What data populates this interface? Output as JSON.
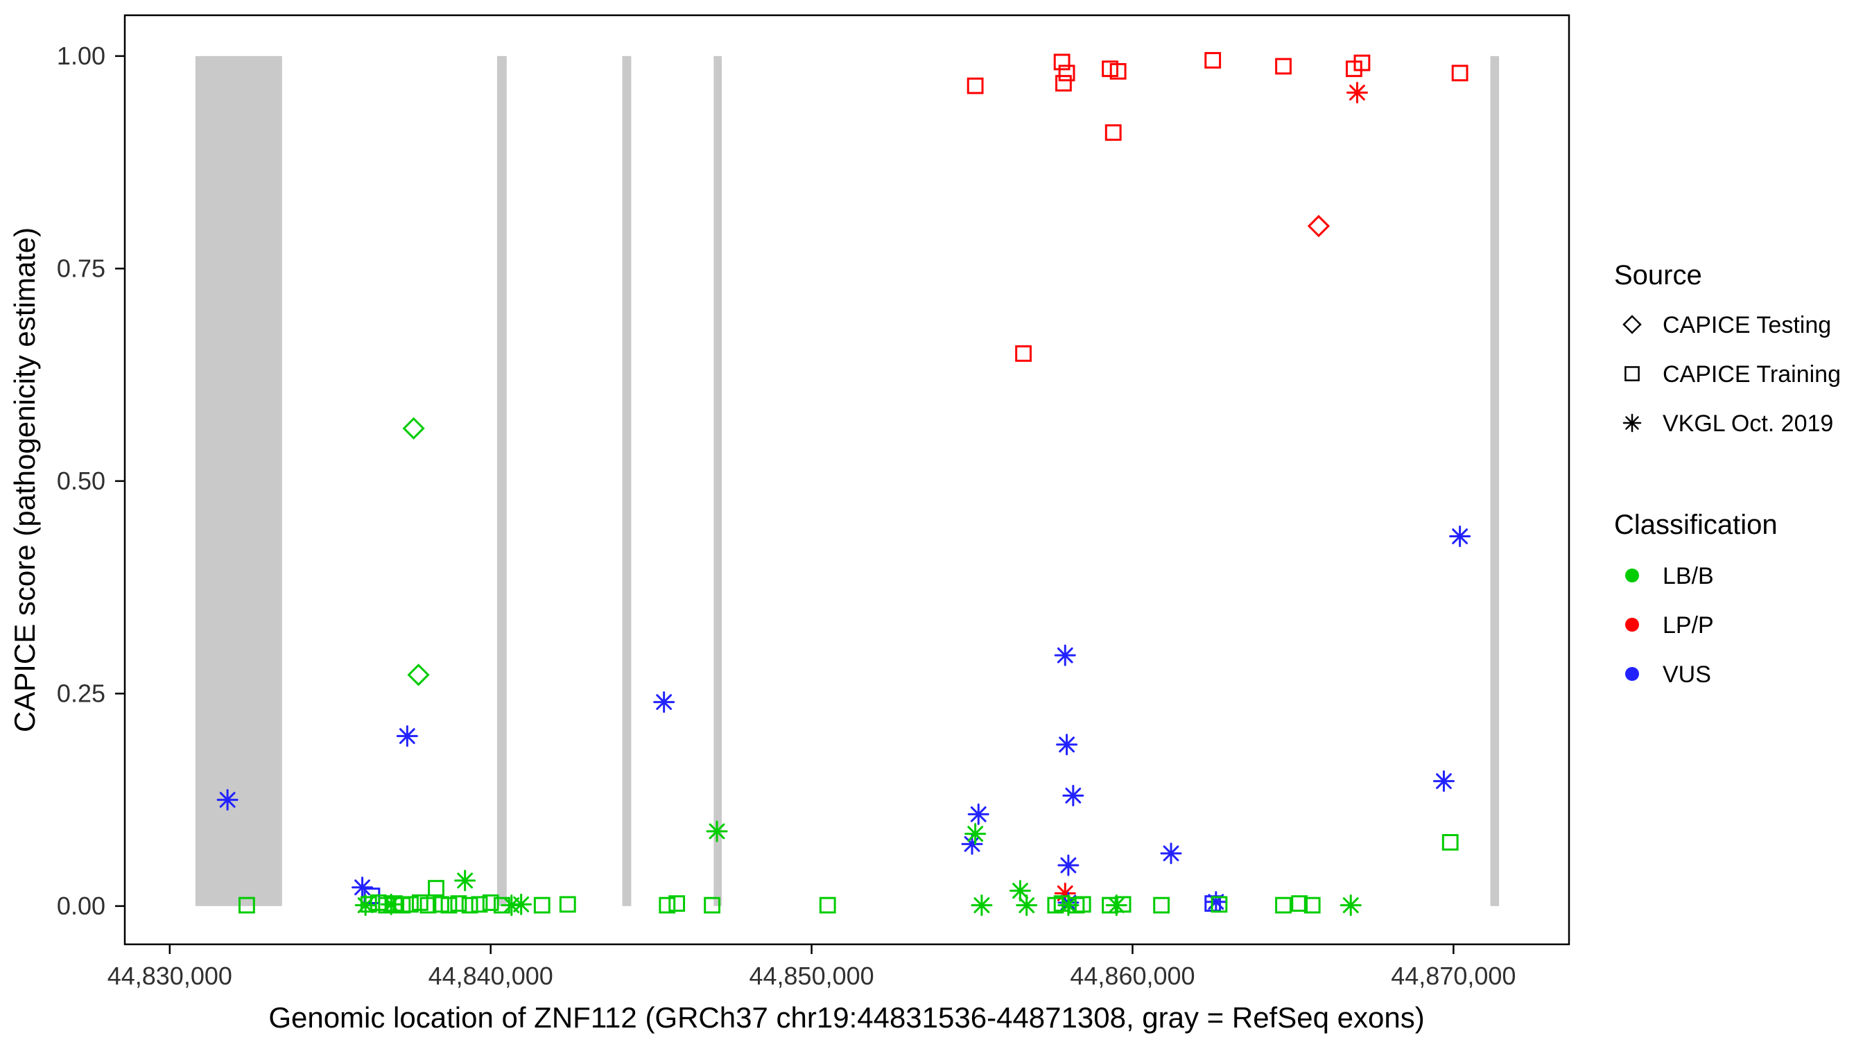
{
  "chart_data": {
    "type": "scatter",
    "title": "",
    "xlabel": "Genomic location of ZNF112 (GRCh37 chr19:44831536-44871308, gray = RefSeq exons)",
    "ylabel": "CAPICE score (pathogenicity estimate)",
    "xlim": [
      44828600,
      44873600
    ],
    "ylim": [
      -0.045,
      1.048
    ],
    "grid": false,
    "panel_border": true,
    "exon_color": "#C9C9C9",
    "x_ticks": [
      {
        "value": 44830000,
        "label": "44,830,000"
      },
      {
        "value": 44840000,
        "label": "44,840,000"
      },
      {
        "value": 44850000,
        "label": "44,850,000"
      },
      {
        "value": 44860000,
        "label": "44,860,000"
      },
      {
        "value": 44870000,
        "label": "44,870,000"
      }
    ],
    "y_ticks": [
      {
        "value": 0.0,
        "label": "0.00"
      },
      {
        "value": 0.25,
        "label": "0.25"
      },
      {
        "value": 0.5,
        "label": "0.50"
      },
      {
        "value": 0.75,
        "label": "0.75"
      },
      {
        "value": 1.0,
        "label": "1.00"
      }
    ],
    "exons": [
      {
        "start": 44830800,
        "end": 44833500
      },
      {
        "start": 44840200,
        "end": 44840500
      },
      {
        "start": 44844100,
        "end": 44844380
      },
      {
        "start": 44846950,
        "end": 44847200
      },
      {
        "start": 44871150,
        "end": 44871420
      }
    ],
    "colors": {
      "LB/B": "#00CC00",
      "LP/P": "#FF0000",
      "VUS": "#2222FF"
    },
    "shapes": {
      "CAPICE Testing": "diamond",
      "CAPICE Training": "square",
      "VKGL Oct. 2019": "asterisk"
    },
    "points": [
      {
        "x": 44855100,
        "y": 0.965,
        "source": "CAPICE Training",
        "class": "LP/P"
      },
      {
        "x": 44857800,
        "y": 0.993,
        "source": "CAPICE Training",
        "class": "LP/P"
      },
      {
        "x": 44857950,
        "y": 0.98,
        "source": "CAPICE Training",
        "class": "LP/P"
      },
      {
        "x": 44857850,
        "y": 0.968,
        "source": "CAPICE Training",
        "class": "LP/P"
      },
      {
        "x": 44859300,
        "y": 0.985,
        "source": "CAPICE Training",
        "class": "LP/P"
      },
      {
        "x": 44859550,
        "y": 0.982,
        "source": "CAPICE Training",
        "class": "LP/P"
      },
      {
        "x": 44859400,
        "y": 0.91,
        "source": "CAPICE Training",
        "class": "LP/P"
      },
      {
        "x": 44862500,
        "y": 0.995,
        "source": "CAPICE Training",
        "class": "LP/P"
      },
      {
        "x": 44864700,
        "y": 0.988,
        "source": "CAPICE Training",
        "class": "LP/P"
      },
      {
        "x": 44866900,
        "y": 0.985,
        "source": "CAPICE Training",
        "class": "LP/P"
      },
      {
        "x": 44867150,
        "y": 0.992,
        "source": "CAPICE Training",
        "class": "LP/P"
      },
      {
        "x": 44870200,
        "y": 0.98,
        "source": "CAPICE Training",
        "class": "LP/P"
      },
      {
        "x": 44856600,
        "y": 0.65,
        "source": "CAPICE Training",
        "class": "LP/P"
      },
      {
        "x": 44865800,
        "y": 0.8,
        "source": "CAPICE Testing",
        "class": "LP/P"
      },
      {
        "x": 44867000,
        "y": 0.957,
        "source": "VKGL Oct. 2019",
        "class": "LP/P"
      },
      {
        "x": 44857900,
        "y": 0.015,
        "source": "VKGL Oct. 2019",
        "class": "LP/P"
      },
      {
        "x": 44837600,
        "y": 0.562,
        "source": "CAPICE Testing",
        "class": "LB/B"
      },
      {
        "x": 44837750,
        "y": 0.272,
        "source": "CAPICE Testing",
        "class": "LB/B"
      },
      {
        "x": 44831800,
        "y": 0.125,
        "source": "VKGL Oct. 2019",
        "class": "VUS"
      },
      {
        "x": 44837400,
        "y": 0.2,
        "source": "VKGL Oct. 2019",
        "class": "VUS"
      },
      {
        "x": 44836000,
        "y": 0.022,
        "source": "VKGL Oct. 2019",
        "class": "VUS"
      },
      {
        "x": 44845400,
        "y": 0.24,
        "source": "VKGL Oct. 2019",
        "class": "VUS"
      },
      {
        "x": 44855200,
        "y": 0.108,
        "source": "VKGL Oct. 2019",
        "class": "VUS"
      },
      {
        "x": 44855000,
        "y": 0.073,
        "source": "VKGL Oct. 2019",
        "class": "VUS"
      },
      {
        "x": 44857900,
        "y": 0.295,
        "source": "VKGL Oct. 2019",
        "class": "VUS"
      },
      {
        "x": 44857950,
        "y": 0.19,
        "source": "VKGL Oct. 2019",
        "class": "VUS"
      },
      {
        "x": 44858150,
        "y": 0.13,
        "source": "VKGL Oct. 2019",
        "class": "VUS"
      },
      {
        "x": 44858000,
        "y": 0.048,
        "source": "VKGL Oct. 2019",
        "class": "VUS"
      },
      {
        "x": 44858000,
        "y": 0.004,
        "source": "VKGL Oct. 2019",
        "class": "VUS"
      },
      {
        "x": 44861200,
        "y": 0.062,
        "source": "VKGL Oct. 2019",
        "class": "VUS"
      },
      {
        "x": 44862600,
        "y": 0.005,
        "source": "VKGL Oct. 2019",
        "class": "VUS"
      },
      {
        "x": 44870200,
        "y": 0.435,
        "source": "VKGL Oct. 2019",
        "class": "VUS"
      },
      {
        "x": 44869700,
        "y": 0.147,
        "source": "VKGL Oct. 2019",
        "class": "VUS"
      },
      {
        "x": 44836300,
        "y": 0.012,
        "source": "CAPICE Training",
        "class": "VUS"
      },
      {
        "x": 44862500,
        "y": 0.003,
        "source": "CAPICE Training",
        "class": "VUS"
      },
      {
        "x": 44832400,
        "y": 0.001,
        "source": "CAPICE Training",
        "class": "LB/B"
      },
      {
        "x": 44836200,
        "y": 0.002,
        "source": "CAPICE Training",
        "class": "LB/B"
      },
      {
        "x": 44836500,
        "y": 0.004,
        "source": "CAPICE Training",
        "class": "LB/B"
      },
      {
        "x": 44836750,
        "y": 0.001,
        "source": "CAPICE Training",
        "class": "LB/B"
      },
      {
        "x": 44837000,
        "y": 0.003,
        "source": "CAPICE Training",
        "class": "LB/B"
      },
      {
        "x": 44837250,
        "y": 0.001,
        "source": "CAPICE Training",
        "class": "LB/B"
      },
      {
        "x": 44837500,
        "y": 0.002,
        "source": "CAPICE Training",
        "class": "LB/B"
      },
      {
        "x": 44837800,
        "y": 0.004,
        "source": "CAPICE Training",
        "class": "LB/B"
      },
      {
        "x": 44838050,
        "y": 0.001,
        "source": "CAPICE Training",
        "class": "LB/B"
      },
      {
        "x": 44838300,
        "y": 0.021,
        "source": "CAPICE Training",
        "class": "LB/B"
      },
      {
        "x": 44838450,
        "y": 0.002,
        "source": "CAPICE Training",
        "class": "LB/B"
      },
      {
        "x": 44838700,
        "y": 0.001,
        "source": "CAPICE Training",
        "class": "LB/B"
      },
      {
        "x": 44839000,
        "y": 0.003,
        "source": "CAPICE Training",
        "class": "LB/B"
      },
      {
        "x": 44839350,
        "y": 0.001,
        "source": "CAPICE Training",
        "class": "LB/B"
      },
      {
        "x": 44839650,
        "y": 0.002,
        "source": "CAPICE Training",
        "class": "LB/B"
      },
      {
        "x": 44840000,
        "y": 0.004,
        "source": "CAPICE Training",
        "class": "LB/B"
      },
      {
        "x": 44840350,
        "y": 0.001,
        "source": "CAPICE Training",
        "class": "LB/B"
      },
      {
        "x": 44841600,
        "y": 0.001,
        "source": "CAPICE Training",
        "class": "LB/B"
      },
      {
        "x": 44842400,
        "y": 0.002,
        "source": "CAPICE Training",
        "class": "LB/B"
      },
      {
        "x": 44845500,
        "y": 0.001,
        "source": "CAPICE Training",
        "class": "LB/B"
      },
      {
        "x": 44845800,
        "y": 0.003,
        "source": "CAPICE Training",
        "class": "LB/B"
      },
      {
        "x": 44846900,
        "y": 0.001,
        "source": "CAPICE Training",
        "class": "LB/B"
      },
      {
        "x": 44850500,
        "y": 0.001,
        "source": "CAPICE Training",
        "class": "LB/B"
      },
      {
        "x": 44857600,
        "y": 0.001,
        "source": "CAPICE Training",
        "class": "LB/B"
      },
      {
        "x": 44857800,
        "y": 0.003,
        "source": "CAPICE Training",
        "class": "LB/B"
      },
      {
        "x": 44858250,
        "y": 0.001,
        "source": "CAPICE Training",
        "class": "LB/B"
      },
      {
        "x": 44858450,
        "y": 0.002,
        "source": "CAPICE Training",
        "class": "LB/B"
      },
      {
        "x": 44859300,
        "y": 0.001,
        "source": "CAPICE Training",
        "class": "LB/B"
      },
      {
        "x": 44859700,
        "y": 0.002,
        "source": "CAPICE Training",
        "class": "LB/B"
      },
      {
        "x": 44860900,
        "y": 0.001,
        "source": "CAPICE Training",
        "class": "LB/B"
      },
      {
        "x": 44862700,
        "y": 0.002,
        "source": "CAPICE Training",
        "class": "LB/B"
      },
      {
        "x": 44864700,
        "y": 0.001,
        "source": "CAPICE Training",
        "class": "LB/B"
      },
      {
        "x": 44865200,
        "y": 0.003,
        "source": "CAPICE Training",
        "class": "LB/B"
      },
      {
        "x": 44865600,
        "y": 0.001,
        "source": "CAPICE Training",
        "class": "LB/B"
      },
      {
        "x": 44869900,
        "y": 0.075,
        "source": "CAPICE Training",
        "class": "LB/B"
      },
      {
        "x": 44836100,
        "y": 0.001,
        "source": "VKGL Oct. 2019",
        "class": "LB/B"
      },
      {
        "x": 44836900,
        "y": 0.002,
        "source": "VKGL Oct. 2019",
        "class": "LB/B"
      },
      {
        "x": 44839200,
        "y": 0.03,
        "source": "VKGL Oct. 2019",
        "class": "LB/B"
      },
      {
        "x": 44840650,
        "y": 0.001,
        "source": "VKGL Oct. 2019",
        "class": "LB/B"
      },
      {
        "x": 44840950,
        "y": 0.002,
        "source": "VKGL Oct. 2019",
        "class": "LB/B"
      },
      {
        "x": 44847050,
        "y": 0.088,
        "source": "VKGL Oct. 2019",
        "class": "LB/B"
      },
      {
        "x": 44855100,
        "y": 0.085,
        "source": "VKGL Oct. 2019",
        "class": "LB/B"
      },
      {
        "x": 44855300,
        "y": 0.001,
        "source": "VKGL Oct. 2019",
        "class": "LB/B"
      },
      {
        "x": 44856500,
        "y": 0.018,
        "source": "VKGL Oct. 2019",
        "class": "LB/B"
      },
      {
        "x": 44856700,
        "y": 0.001,
        "source": "VKGL Oct. 2019",
        "class": "LB/B"
      },
      {
        "x": 44858000,
        "y": 0.001,
        "source": "VKGL Oct. 2019",
        "class": "LB/B"
      },
      {
        "x": 44859500,
        "y": 0.001,
        "source": "VKGL Oct. 2019",
        "class": "LB/B"
      },
      {
        "x": 44866800,
        "y": 0.001,
        "source": "VKGL Oct. 2019",
        "class": "LB/B"
      }
    ],
    "legend": {
      "source": {
        "title": "Source",
        "items": [
          {
            "label": "CAPICE Testing",
            "shape": "diamond"
          },
          {
            "label": "CAPICE Training",
            "shape": "square"
          },
          {
            "label": "VKGL Oct. 2019",
            "shape": "asterisk"
          }
        ]
      },
      "classification": {
        "title": "Classification",
        "items": [
          {
            "label": "LB/B",
            "color": "#00CC00"
          },
          {
            "label": "LP/P",
            "color": "#FF0000"
          },
          {
            "label": "VUS",
            "color": "#2222FF"
          }
        ]
      }
    }
  }
}
